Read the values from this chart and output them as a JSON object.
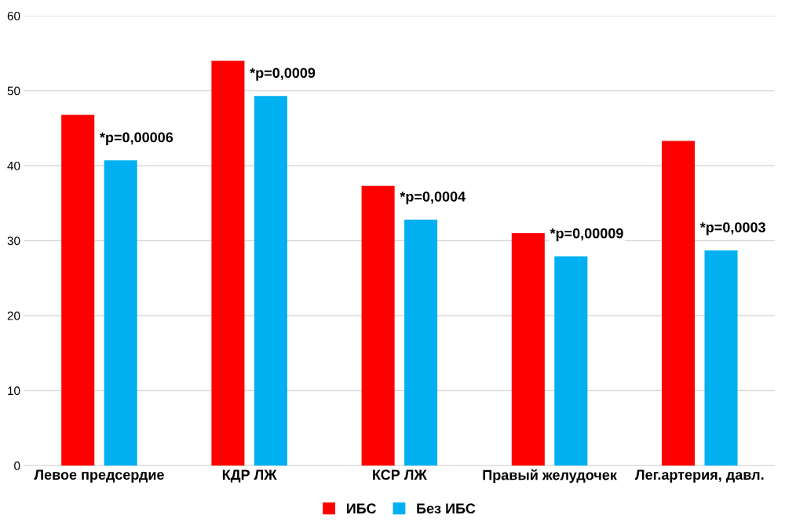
{
  "chart_data": {
    "type": "bar",
    "categories": [
      "Левое предсердие",
      "КДР ЛЖ",
      "КСР ЛЖ",
      "Правый желудочек",
      "Лег.артерия, давл."
    ],
    "series": [
      {
        "name": "ИБС",
        "color": "#ff0000",
        "values": [
          46.8,
          54,
          37.3,
          31,
          43.3
        ]
      },
      {
        "name": "Без ИБС",
        "color": "#00b0f0",
        "values": [
          40.7,
          49.3,
          32.8,
          27.9,
          28.7
        ]
      }
    ],
    "ylim": [
      0,
      60
    ],
    "yticks": [
      0,
      10,
      20,
      30,
      40,
      50,
      60
    ],
    "grid": "y",
    "legend": "bottom",
    "annotations": [
      "*p=0,00006",
      "*p=0,0009",
      "*p=0,0004",
      "*p=0,00009",
      "*p=0,0003"
    ]
  }
}
